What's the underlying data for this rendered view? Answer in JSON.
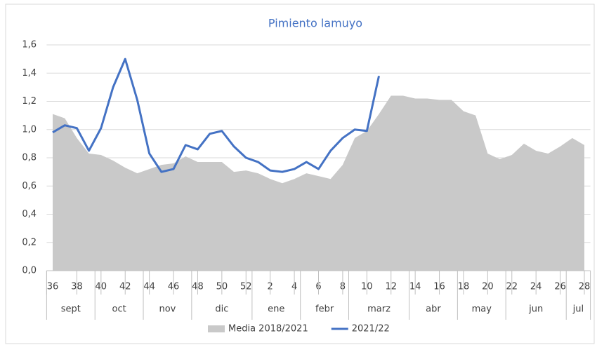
{
  "chart_data": {
    "type": "line",
    "title": "Pimiento lamuyo",
    "categories": [
      "36",
      null,
      "38",
      null,
      "40",
      null,
      "42",
      null,
      "44",
      null,
      "46",
      null,
      "48",
      null,
      "50",
      null,
      "52",
      null,
      "2",
      null,
      "4",
      null,
      "6",
      null,
      "8",
      null,
      "10",
      null,
      "12",
      null,
      "14",
      null,
      "16",
      null,
      "18",
      null,
      "20",
      null,
      "22",
      null,
      "24",
      null,
      "26",
      null,
      "28"
    ],
    "month_groups": [
      {
        "label": "sept",
        "span": 4
      },
      {
        "label": "oct",
        "span": 4
      },
      {
        "label": "nov",
        "span": 4
      },
      {
        "label": "dic",
        "span": 5
      },
      {
        "label": "ene",
        "span": 4
      },
      {
        "label": "febr",
        "span": 4
      },
      {
        "label": "marz",
        "span": 5
      },
      {
        "label": "abr",
        "span": 4
      },
      {
        "label": "may",
        "span": 4
      },
      {
        "label": "jun",
        "span": 5
      },
      {
        "label": "jul",
        "span": 2
      }
    ],
    "series": [
      {
        "name": "Media 2018/2021",
        "type": "area",
        "color": "#c9c9c9",
        "values": [
          1.11,
          1.08,
          0.94,
          0.83,
          0.82,
          0.78,
          0.73,
          0.69,
          0.72,
          0.75,
          0.76,
          0.81,
          0.77,
          0.77,
          0.77,
          0.7,
          0.71,
          0.69,
          0.65,
          0.62,
          0.65,
          0.69,
          0.67,
          0.65,
          0.75,
          0.94,
          0.99,
          1.11,
          1.24,
          1.24,
          1.22,
          1.22,
          1.21,
          1.21,
          1.13,
          1.1,
          0.83,
          0.79,
          0.82,
          0.9,
          0.85,
          0.83,
          0.88,
          0.94,
          0.89
        ]
      },
      {
        "name": "2021/22",
        "type": "line",
        "color": "#4472c4",
        "values": [
          0.98,
          1.03,
          1.01,
          0.85,
          1.01,
          1.3,
          1.5,
          1.21,
          0.83,
          0.7,
          0.72,
          0.89,
          0.86,
          0.97,
          0.99,
          0.88,
          0.8,
          0.77,
          0.71,
          0.7,
          0.72,
          0.77,
          0.72,
          0.85,
          0.94,
          1.0,
          0.99,
          1.38,
          null,
          null,
          null,
          null,
          null,
          null,
          null,
          null,
          null,
          null,
          null,
          null,
          null,
          null,
          null,
          null,
          null
        ]
      }
    ],
    "ylim": [
      0,
      1.6
    ],
    "yticks": [
      {
        "value": 0,
        "label": "0,0"
      },
      {
        "value": 0.2,
        "label": "0,2"
      },
      {
        "value": 0.4,
        "label": "0,4"
      },
      {
        "value": 0.6,
        "label": "0,6"
      },
      {
        "value": 0.8,
        "label": "0,8"
      },
      {
        "value": 1.0,
        "label": "1,0"
      },
      {
        "value": 1.2,
        "label": "1,2"
      },
      {
        "value": 1.4,
        "label": "1,4"
      },
      {
        "value": 1.6,
        "label": "1,6"
      }
    ],
    "grid": true,
    "legend": "bottom"
  }
}
